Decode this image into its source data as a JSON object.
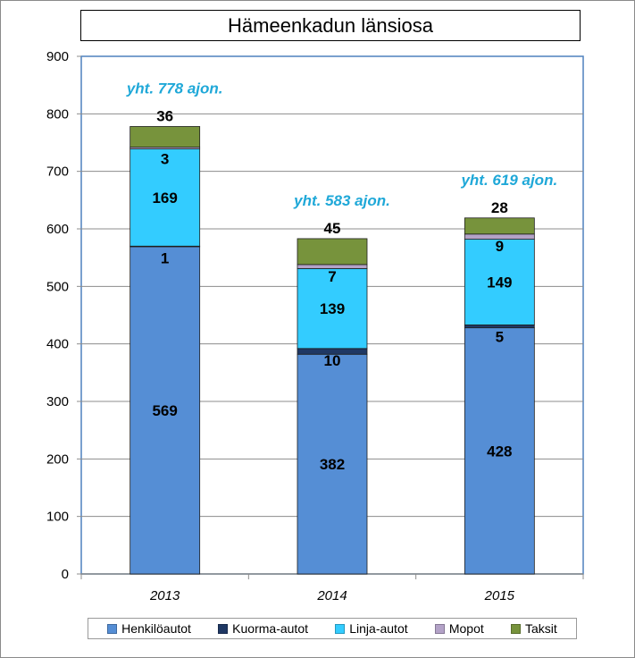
{
  "title": "Hämeenkadun länsiosa",
  "colors": {
    "Henkilöautot": "#558ed5",
    "Kuorma-autot": "#1f3864",
    "Linja-autot": "#33ccff",
    "Mopot": "#b3a2c7",
    "Taksit": "#77933c",
    "total_label": "#1fa8d8"
  },
  "chart_data": {
    "type": "bar",
    "stacked": true,
    "categories": [
      "2013",
      "2014",
      "2015"
    ],
    "series": [
      {
        "name": "Henkilöautot",
        "values": [
          569,
          382,
          428
        ]
      },
      {
        "name": "Kuorma-autot",
        "values": [
          1,
          10,
          5
        ]
      },
      {
        "name": "Linja-autot",
        "values": [
          169,
          139,
          149
        ]
      },
      {
        "name": "Mopot",
        "values": [
          3,
          7,
          9
        ]
      },
      {
        "name": "Taksit",
        "values": [
          36,
          45,
          28
        ]
      }
    ],
    "totals_labels": [
      "yht. 778 ajon.",
      "yht. 583 ajon.",
      "yht. 619 ajon."
    ],
    "ylim": [
      0,
      900
    ],
    "yticks": [
      "0",
      "100",
      "200",
      "300",
      "400",
      "500",
      "600",
      "700",
      "800",
      "900"
    ],
    "grid": true,
    "legend_position": "bottom"
  }
}
